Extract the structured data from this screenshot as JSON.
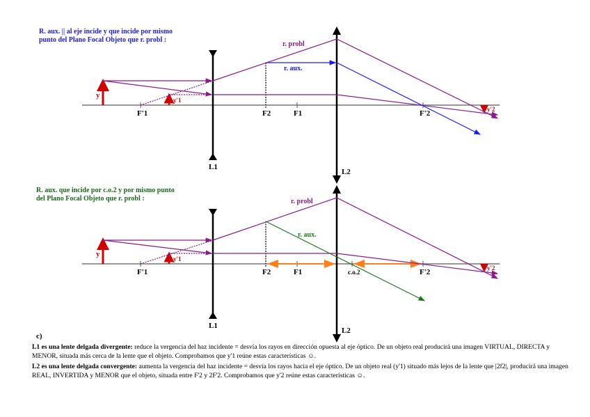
{
  "colors": {
    "problem_ray": "#8b1a8b",
    "aux_ray_top": "#1a1aff",
    "aux_ray_bottom": "#1a7a1a",
    "object": "#d00000",
    "orange": "#ff7f1a",
    "note_top": "#1a1aff",
    "note_bottom": "#1a6a1a"
  },
  "top": {
    "note_line1": "R. aux.  || al eje incide y que incide por mismo",
    "note_line2": "punto del Plano Focal Objeto que r. probl :",
    "r_probl": "r. probl",
    "r_aux": "r. aux.",
    "y": "y",
    "y1": "y'1",
    "y2": "y'2",
    "F1p": "F'1",
    "F2": "F2",
    "F1": "F1",
    "F2p": "F'2",
    "L1": "L1",
    "L2": "L2"
  },
  "bottom": {
    "note_line1": "R. aux. que incide por c.o.2 y por mismo punto",
    "note_line2": "del Plano Focal Objeto que r. probl :",
    "r_probl": "r. probl",
    "r_aux": "r. aux.",
    "y": "y",
    "y1": "y'1",
    "y2": "y'2",
    "F1p": "F'1",
    "F2": "F2",
    "F1": "F1",
    "co2": "c.o.2",
    "F2p": "F'2",
    "L1": "L1",
    "L2": "L2",
    "part": "c)"
  },
  "text": {
    "p1_bold": "L1 es una lente delgada divergente:",
    "p1": " reduce la vergencia del haz incidente = desvía los rayos en dirección opuesta al eje óptico. De un objeto real producirá una imagen VIRTUAL, DIRECTA y MENOR, situada más cerca de la lente que el objeto. Comprobamos que y'1 reúne estas características ☺.",
    "p2_bold": "L2 es una lente delgada convergente:",
    "p2": " aumenta la vergencia del haz incidente = desvía los rayos hacia el eje óptico. De un objeto real (y'1) situado más lejos de la lente que |2f2|, producirá una imagen REAL, INVERTIDA y MENOR que el objeto, situada entre F'2 y 2F'2. Comprobamos que y'2 reúne estas características ☺."
  }
}
